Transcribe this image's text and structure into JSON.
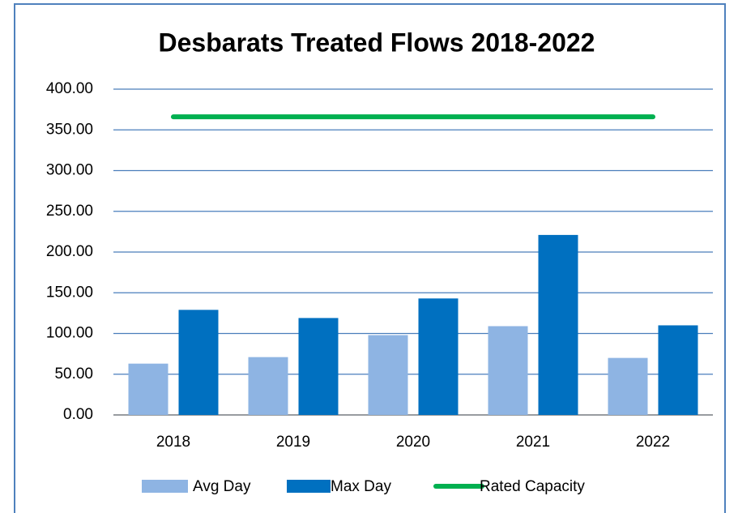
{
  "chart_data": {
    "type": "bar",
    "title": "Desbarats Treated Flows 2018-2022",
    "categories": [
      "2018",
      "2019",
      "2020",
      "2021",
      "2022"
    ],
    "series": [
      {
        "name": "Avg Day",
        "color": "#8eb4e3",
        "values": [
          63,
          71,
          98,
          109,
          70
        ]
      },
      {
        "name": "Max Day",
        "color": "#0070c0",
        "values": [
          129,
          119,
          143,
          221,
          110
        ]
      },
      {
        "name": "Rated Capacity",
        "color": "#00b050",
        "type": "line",
        "values": [
          366,
          366,
          366,
          366,
          366
        ]
      }
    ],
    "ylim": [
      0,
      400
    ],
    "yticks": [
      {
        "value": 0,
        "label": "0.00"
      },
      {
        "value": 50,
        "label": "50.00"
      },
      {
        "value": 100,
        "label": "100.00"
      },
      {
        "value": 150,
        "label": "150.00"
      },
      {
        "value": 200,
        "label": "200.00"
      },
      {
        "value": 250,
        "label": "250.00"
      },
      {
        "value": 300,
        "label": "300.00"
      },
      {
        "value": 350,
        "label": "350.00"
      },
      {
        "value": 400,
        "label": "400.00"
      }
    ],
    "grid": true,
    "legend": "bottom"
  }
}
